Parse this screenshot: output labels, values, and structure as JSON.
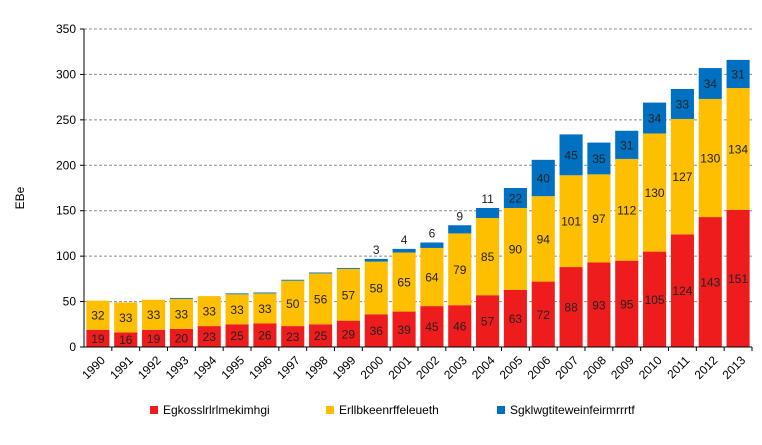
{
  "chart_data": {
    "type": "bar",
    "stacked": true,
    "title": "",
    "xlabel": "",
    "ylabel": "EBe",
    "ylim": [
      0,
      350
    ],
    "yticks": [
      0,
      50,
      100,
      150,
      200,
      250,
      300,
      350
    ],
    "grid": true,
    "legend_position": "bottom",
    "categories": [
      "1990",
      "1991",
      "1992",
      "1993",
      "1994",
      "1995",
      "1996",
      "1997",
      "1998",
      "1999",
      "2000",
      "2001",
      "2002",
      "2003",
      "2004",
      "2005",
      "2006",
      "2007",
      "2008",
      "2009",
      "2010",
      "2011",
      "2012",
      "2013"
    ],
    "series": [
      {
        "name": "Egkosslrlrlmekimhgi",
        "color": "#ee1c1c",
        "values": [
          19,
          16,
          19,
          20,
          23,
          25,
          26,
          23,
          25,
          29,
          36,
          39,
          45,
          46,
          57,
          63,
          72,
          88,
          93,
          95,
          105,
          124,
          143,
          151
        ],
        "labels": [
          "19",
          "16",
          "19",
          "20",
          "23",
          "25",
          "26",
          "23",
          "25",
          "29",
          "36",
          "39",
          "45",
          "46",
          "57",
          "63",
          "72",
          "88",
          "93",
          "95",
          "105",
          "124",
          "143",
          "151"
        ]
      },
      {
        "name": "Erllbkeenrffeleueth",
        "color": "#fdbf00",
        "values": [
          32,
          33,
          33,
          33,
          33,
          33,
          33,
          50,
          56,
          57,
          58,
          65,
          64,
          79,
          85,
          90,
          94,
          101,
          97,
          112,
          130,
          127,
          130,
          134
        ],
        "labels": [
          "32",
          "33",
          "33",
          "33",
          "33",
          "33",
          "33",
          "50",
          "56",
          "57",
          "58",
          "65",
          "64",
          "79",
          "85",
          "90",
          "94",
          "101",
          "97",
          "112",
          "130",
          "127",
          "130",
          "134"
        ]
      },
      {
        "name": "Sgklwgtiteweinfeirmrrrtf",
        "color": "#0070c0",
        "values": [
          0,
          0,
          0,
          1,
          0,
          1,
          1,
          1,
          1,
          1,
          3,
          4,
          6,
          9,
          11,
          22,
          40,
          45,
          35,
          31,
          34,
          33,
          34,
          31
        ],
        "labels": [
          "",
          "",
          "",
          "",
          "",
          "",
          "",
          "",
          "",
          "",
          "3",
          "4",
          "6",
          "9",
          "11",
          "22",
          "40",
          "45",
          "35",
          "31",
          "34",
          "33",
          "34",
          "31"
        ]
      }
    ]
  }
}
